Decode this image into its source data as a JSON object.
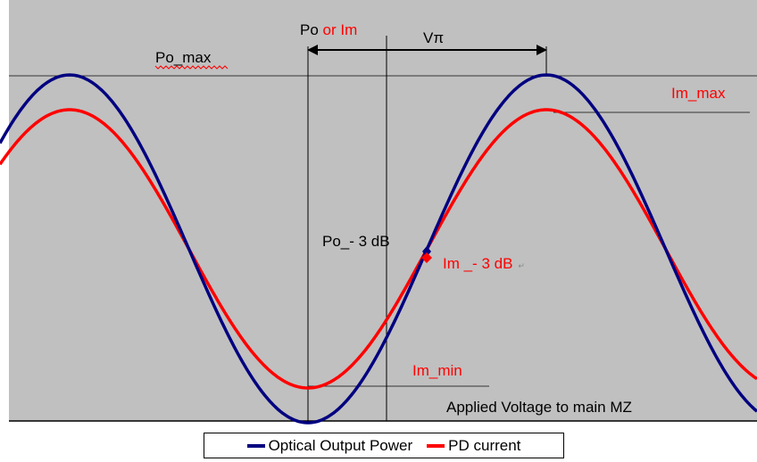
{
  "labels": {
    "po_or": "Po ",
    "or_im": "or Im",
    "v_pi": "Vπ",
    "po_max": "Po_max",
    "im_max": "Im_max",
    "po_3db": "Po_- 3 dB",
    "im_3db": "Im _- 3 dB",
    "return_mark": "↵",
    "im_min": "Im_min",
    "x_axis": "Applied Voltage to main MZ"
  },
  "legend": [
    {
      "name": "Optical Output Power",
      "color": "#000080"
    },
    {
      "name": "PD current",
      "color": "#ff0000"
    }
  ],
  "colors": {
    "plot_bg": "#c0c0c0",
    "optical": "#000080",
    "pd": "#ff0000",
    "annotation": "#000000"
  },
  "chart_data": {
    "type": "line",
    "x_unit": "Vπ",
    "series": [
      {
        "name": "Optical Output Power",
        "description_values": {
          "max": 1.0,
          "min": 0.0,
          "amplitude": 0.5,
          "offset": 0.5
        }
      },
      {
        "name": "PD current",
        "description_values": {
          "max": 0.9,
          "min": 0.1,
          "amplitude": 0.4,
          "offset": 0.5
        }
      }
    ],
    "x_range_vpi": [
      -1.25,
      1.95
    ],
    "markers": [
      {
        "label": "Po_- 3 dB",
        "series": "Optical Output Power",
        "x_vpi": 0.5
      },
      {
        "label": "Im _- 3 dB",
        "series": "PD current",
        "x_vpi": 0.5
      }
    ]
  }
}
